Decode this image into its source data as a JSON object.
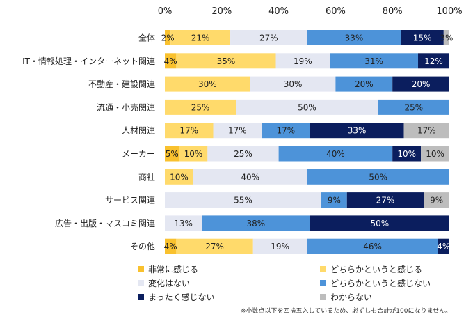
{
  "chart_data": {
    "type": "bar",
    "orientation": "horizontal",
    "stacked": true,
    "xlim": [
      0,
      100
    ],
    "x_ticks": [
      "0%",
      "20%",
      "40%",
      "60%",
      "80%",
      "100%"
    ],
    "grid": false,
    "legend_position": "bottom",
    "categories": [
      "全体",
      "IT・情報処理・インターネット関連",
      "不動産・建設関連",
      "流通・小売関連",
      "人材関連",
      "メーカー",
      "商社",
      "サービス関連",
      "広告・出版・マスコミ関連",
      "その他"
    ],
    "series": [
      {
        "name": "非常に感じる",
        "color": "#F9C12E",
        "values": [
          2,
          4,
          0,
          0,
          0,
          5,
          0,
          0,
          0,
          4
        ],
        "labels": [
          "2%",
          "4%",
          "",
          "",
          "",
          "5%",
          "",
          "",
          "",
          "4%"
        ]
      },
      {
        "name": "どちらかというと感じる",
        "color": "#FFDA6B",
        "values": [
          21,
          35,
          30,
          25,
          17,
          10,
          10,
          0,
          0,
          27
        ],
        "labels": [
          "21%",
          "35%",
          "30%",
          "25%",
          "17%",
          "10%",
          "10%",
          "",
          "",
          "27%"
        ]
      },
      {
        "name": "変化はない",
        "color": "#E4E7F2",
        "values": [
          27,
          19,
          30,
          50,
          17,
          25,
          40,
          55,
          13,
          19
        ],
        "labels": [
          "27%",
          "19%",
          "30%",
          "50%",
          "17%",
          "25%",
          "40%",
          "55%",
          "13%",
          "19%"
        ]
      },
      {
        "name": "どちらかというと感じない",
        "color": "#4D93D9",
        "values": [
          33,
          31,
          20,
          25,
          17,
          40,
          50,
          9,
          38,
          46
        ],
        "labels": [
          "33%",
          "31%",
          "20%",
          "25%",
          "17%",
          "40%",
          "50%",
          "9%",
          "38%",
          "46%"
        ]
      },
      {
        "name": "まったく感じない",
        "color": "#0B1E5E",
        "values": [
          15,
          12,
          20,
          0,
          33,
          10,
          0,
          27,
          50,
          4
        ],
        "labels": [
          "15%",
          "12%",
          "20%",
          "",
          "33%",
          "10%",
          "",
          "27%",
          "50%",
          "4%"
        ]
      },
      {
        "name": "わからない",
        "color": "#BDBDBD",
        "values": [
          3,
          0,
          0,
          0,
          17,
          10,
          0,
          9,
          0,
          0
        ],
        "labels": [
          "3%",
          "",
          "",
          "",
          "17%",
          "10%",
          "",
          "9%",
          "",
          ""
        ]
      }
    ]
  },
  "footnote": "※小数点以下を四捨五入しているため、必ずしも合計が100になりません。"
}
